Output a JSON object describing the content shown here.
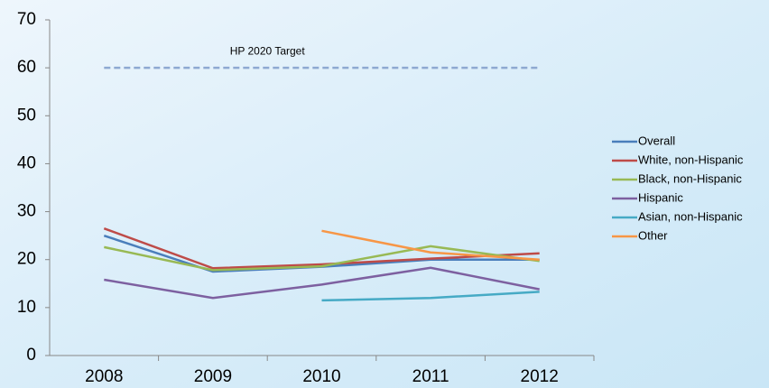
{
  "chart_data": {
    "type": "line",
    "categories": [
      "2008",
      "2009",
      "2010",
      "2011",
      "2012"
    ],
    "series": [
      {
        "name": "Overall",
        "color": "#4a7ebb",
        "values": [
          25,
          17.5,
          18.5,
          20,
          20
        ]
      },
      {
        "name": "White, non-Hispanic",
        "color": "#be4b48",
        "values": [
          26.5,
          18.2,
          19,
          20.2,
          21.3
        ]
      },
      {
        "name": "Black, non-Hispanic",
        "color": "#98b954",
        "values": [
          22.6,
          17.8,
          18.6,
          22.8,
          19.7
        ]
      },
      {
        "name": "Hispanic",
        "color": "#7d60a0",
        "values": [
          15.8,
          12,
          14.8,
          18.3,
          13.8
        ]
      },
      {
        "name": "Asian, non-Hispanic",
        "color": "#46aac5",
        "values": [
          null,
          null,
          11.5,
          12,
          13.3
        ]
      },
      {
        "name": "Other",
        "color": "#f79646",
        "values": [
          null,
          null,
          26,
          21.5,
          20
        ]
      }
    ],
    "target": {
      "label": "HP 2020 Target",
      "value": 60,
      "color": "#8ea9d1"
    },
    "ylim": [
      0,
      70
    ],
    "yticks": [
      0,
      10,
      20,
      30,
      40,
      50,
      60,
      70
    ],
    "legend": "right"
  }
}
